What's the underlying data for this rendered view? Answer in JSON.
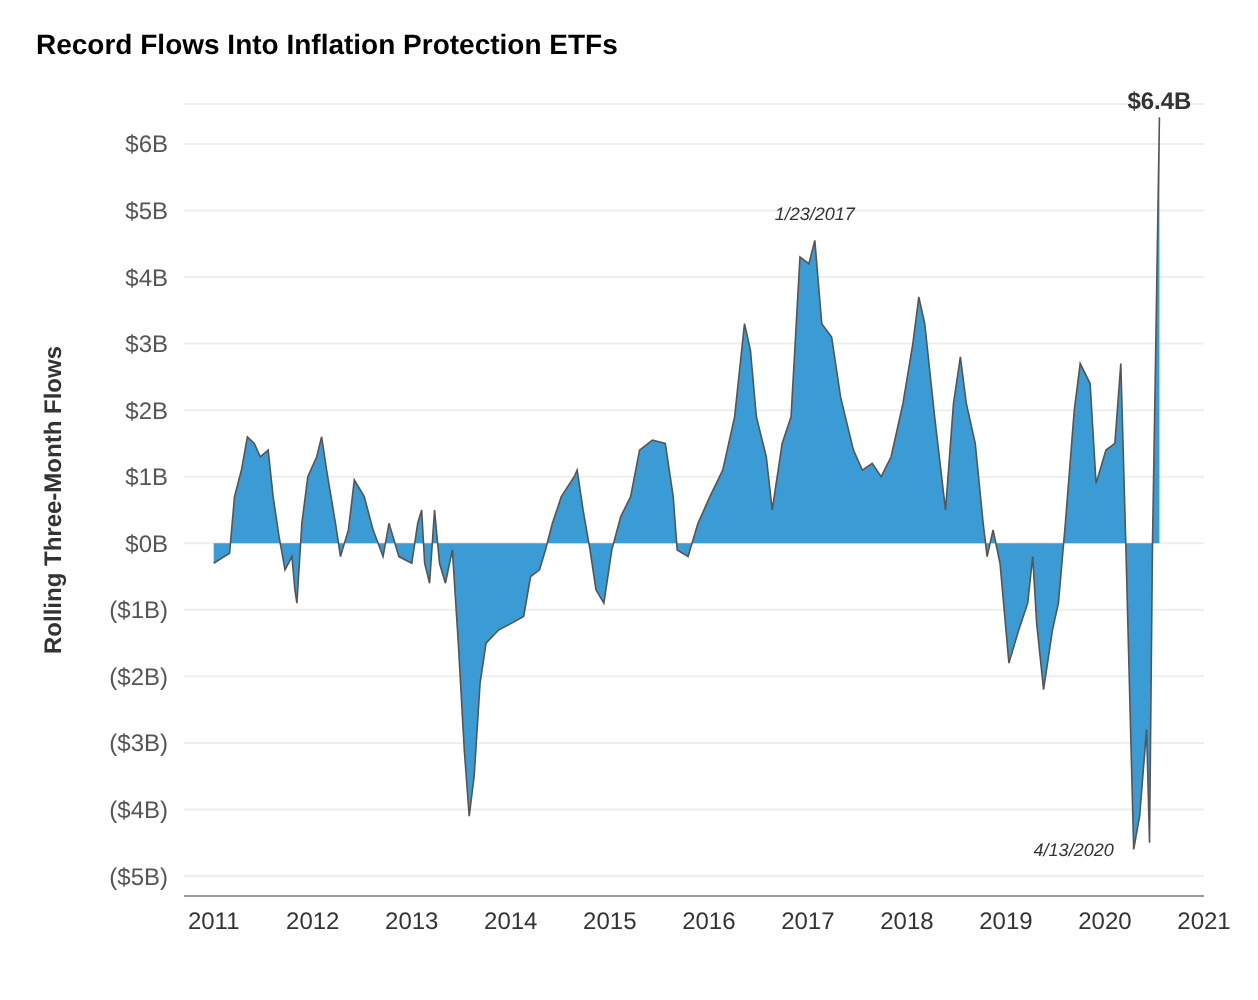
{
  "chart_data": {
    "type": "area",
    "title": "Record Flows Into Inflation Protection ETFs",
    "ylabel": "Rolling Three-Month Flows",
    "x": [
      2011.0,
      2011.16,
      2011.21,
      2011.28,
      2011.34,
      2011.41,
      2011.47,
      2011.55,
      2011.6,
      2011.66,
      2011.72,
      2011.79,
      2011.82,
      2011.84,
      2011.89,
      2011.95,
      2012.04,
      2012.09,
      2012.14,
      2012.23,
      2012.28,
      2012.36,
      2012.42,
      2012.52,
      2012.61,
      2012.71,
      2012.77,
      2012.87,
      2013.0,
      2013.06,
      2013.1,
      2013.13,
      2013.18,
      2013.23,
      2013.28,
      2013.34,
      2013.41,
      2013.47,
      2013.53,
      2013.58,
      2013.63,
      2013.69,
      2013.75,
      2013.88,
      2014.01,
      2014.13,
      2014.2,
      2014.29,
      2014.35,
      2014.42,
      2014.51,
      2014.64,
      2014.67,
      2014.73,
      2014.8,
      2014.86,
      2014.94,
      2015.02,
      2015.11,
      2015.21,
      2015.3,
      2015.43,
      2015.56,
      2015.64,
      2015.68,
      2015.79,
      2015.89,
      2016.01,
      2016.14,
      2016.26,
      2016.36,
      2016.42,
      2016.48,
      2016.58,
      2016.64,
      2016.74,
      2016.83,
      2016.92,
      2017.01,
      2017.07,
      2017.14,
      2017.24,
      2017.33,
      2017.46,
      2017.55,
      2017.65,
      2017.74,
      2017.84,
      2017.96,
      2018.06,
      2018.12,
      2018.18,
      2018.28,
      2018.39,
      2018.47,
      2018.54,
      2018.6,
      2018.69,
      2018.77,
      2018.81,
      2018.87,
      2018.94,
      2019.03,
      2019.13,
      2019.22,
      2019.27,
      2019.31,
      2019.38,
      2019.47,
      2019.53,
      2019.6,
      2019.69,
      2019.75,
      2019.85,
      2019.91,
      2020.01,
      2020.1,
      2020.16,
      2020.21,
      2020.29,
      2020.35,
      2020.42,
      2020.45,
      2020.48,
      2020.51,
      2020.55
    ],
    "series": [
      {
        "color": "#3a9bd5",
        "values": [
          -0.3,
          -0.15,
          0.7,
          1.1,
          1.6,
          1.5,
          1.3,
          1.4,
          0.7,
          0.1,
          -0.4,
          -0.2,
          -0.7,
          -0.9,
          0.3,
          1.0,
          1.3,
          1.6,
          1.1,
          0.3,
          -0.2,
          0.2,
          0.95,
          0.7,
          0.2,
          -0.2,
          0.3,
          -0.2,
          -0.3,
          0.3,
          0.5,
          -0.3,
          -0.6,
          0.5,
          -0.3,
          -0.6,
          -0.1,
          -1.5,
          -3.1,
          -4.1,
          -3.5,
          -2.1,
          -1.5,
          -1.3,
          -1.2,
          -1.1,
          -0.5,
          -0.4,
          -0.1,
          0.3,
          0.7,
          1.0,
          1.1,
          0.5,
          -0.1,
          -0.7,
          -0.9,
          -0.1,
          0.4,
          0.7,
          1.4,
          1.55,
          1.5,
          0.7,
          -0.1,
          -0.2,
          0.3,
          0.7,
          1.1,
          1.9,
          3.3,
          2.9,
          1.9,
          1.3,
          0.5,
          1.5,
          1.9,
          4.3,
          4.2,
          4.55,
          3.3,
          3.1,
          2.2,
          1.4,
          1.1,
          1.2,
          1.0,
          1.3,
          2.1,
          3.0,
          3.7,
          3.3,
          1.9,
          0.5,
          2.1,
          2.8,
          2.1,
          1.5,
          0.3,
          -0.2,
          0.2,
          -0.3,
          -1.8,
          -1.3,
          -0.9,
          -0.2,
          -1.2,
          -2.2,
          -1.3,
          -0.9,
          0.3,
          2.0,
          2.7,
          2.4,
          0.9,
          1.4,
          1.5,
          2.7,
          0,
          -4.6,
          -4.1,
          -2.8,
          -4.5,
          0,
          2.7,
          6.4
        ]
      }
    ],
    "xlim": [
      2010.7,
      2021.0
    ],
    "xticks": [
      2011,
      2012,
      2013,
      2014,
      2015,
      2016,
      2017,
      2018,
      2019,
      2020,
      2021
    ],
    "ylim": [
      -5.3,
      6.6
    ],
    "yticks": [
      {
        "value": 6,
        "label": "$6B"
      },
      {
        "value": 5,
        "label": "$5B"
      },
      {
        "value": 4,
        "label": "$4B"
      },
      {
        "value": 3,
        "label": "$3B"
      },
      {
        "value": 2,
        "label": "$2B"
      },
      {
        "value": 1,
        "label": "$1B"
      },
      {
        "value": 0,
        "label": "$0B"
      },
      {
        "value": -1,
        "label": "($1B)"
      },
      {
        "value": -2,
        "label": "($2B)"
      },
      {
        "value": -3,
        "label": "($3B)"
      },
      {
        "value": -4,
        "label": "($4B)"
      },
      {
        "value": -5,
        "label": "($5B)"
      }
    ],
    "grid": "y",
    "legend": false,
    "annotations": [
      {
        "text": "1/23/2017",
        "x": 2017.07,
        "y": 4.55
      },
      {
        "text": "4/13/2020",
        "x": 2020.29,
        "y": -4.6
      },
      {
        "text": "$6.4B",
        "x": 2020.55,
        "y": 6.4
      }
    ]
  }
}
